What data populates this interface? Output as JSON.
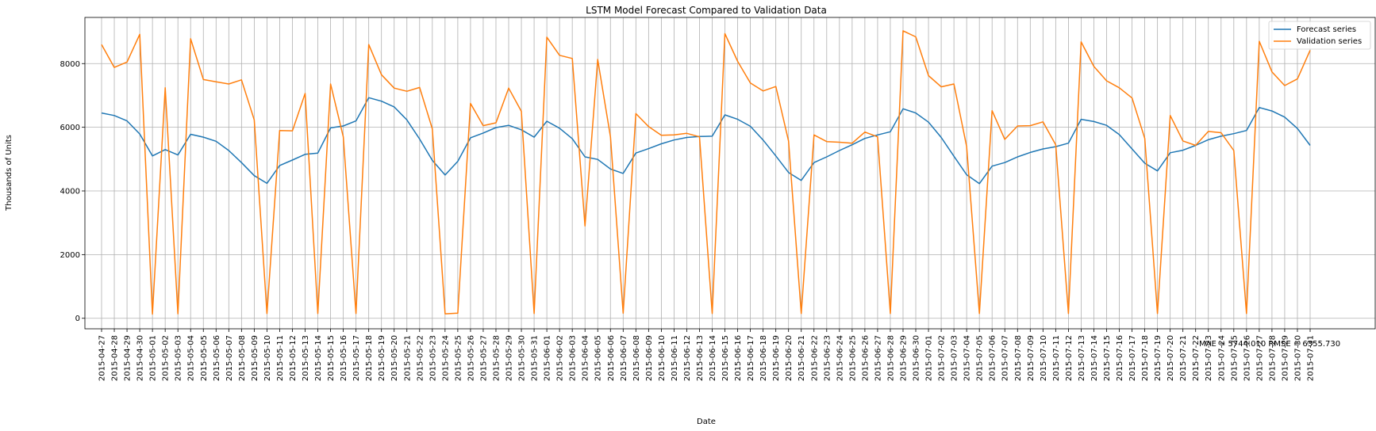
{
  "chart_data": {
    "type": "line",
    "title": "LSTM Model Forecast Compared to Validation Data",
    "xlabel": "Date",
    "ylabel": "Thousands of Units",
    "ylim": [
      -330,
      9450
    ],
    "yticks": [
      0,
      2000,
      4000,
      6000,
      8000
    ],
    "grid": true,
    "legend_position": "top-right",
    "annotation": "MAE = 5744.010  RMSE = 6355.730",
    "x": [
      "2015-04-27",
      "2015-04-28",
      "2015-04-29",
      "2015-04-30",
      "2015-05-01",
      "2015-05-02",
      "2015-05-03",
      "2015-05-04",
      "2015-05-05",
      "2015-05-06",
      "2015-05-07",
      "2015-05-08",
      "2015-05-09",
      "2015-05-10",
      "2015-05-11",
      "2015-05-12",
      "2015-05-13",
      "2015-05-14",
      "2015-05-15",
      "2015-05-16",
      "2015-05-17",
      "2015-05-18",
      "2015-05-19",
      "2015-05-20",
      "2015-05-21",
      "2015-05-22",
      "2015-05-23",
      "2015-05-24",
      "2015-05-25",
      "2015-05-26",
      "2015-05-27",
      "2015-05-28",
      "2015-05-29",
      "2015-05-30",
      "2015-05-31",
      "2015-06-01",
      "2015-06-02",
      "2015-06-03",
      "2015-06-04",
      "2015-06-05",
      "2015-06-06",
      "2015-06-07",
      "2015-06-08",
      "2015-06-09",
      "2015-06-10",
      "2015-06-11",
      "2015-06-12",
      "2015-06-13",
      "2015-06-14",
      "2015-06-15",
      "2015-06-16",
      "2015-06-17",
      "2015-06-18",
      "2015-06-19",
      "2015-06-20",
      "2015-06-21",
      "2015-06-22",
      "2015-06-23",
      "2015-06-24",
      "2015-06-25",
      "2015-06-26",
      "2015-06-27",
      "2015-06-28",
      "2015-06-29",
      "2015-06-30",
      "2015-07-01",
      "2015-07-02",
      "2015-07-03",
      "2015-07-04",
      "2015-07-05",
      "2015-07-06",
      "2015-07-07",
      "2015-07-08",
      "2015-07-09",
      "2015-07-10",
      "2015-07-11",
      "2015-07-12",
      "2015-07-13",
      "2015-07-14",
      "2015-07-15",
      "2015-07-16",
      "2015-07-17",
      "2015-07-18",
      "2015-07-19",
      "2015-07-20",
      "2015-07-21",
      "2015-07-22",
      "2015-07-23",
      "2015-07-24",
      "2015-07-25",
      "2015-07-26",
      "2015-07-27",
      "2015-07-28",
      "2015-07-29",
      "2015-07-30",
      "2015-07-31"
    ],
    "series": [
      {
        "name": "Forecast series",
        "color": "#1f77b4",
        "values": [
          6450,
          6370,
          6200,
          5790,
          5100,
          5300,
          5130,
          5780,
          5690,
          5560,
          5270,
          4890,
          4480,
          4240,
          4800,
          4970,
          5150,
          5190,
          5980,
          6040,
          6200,
          6930,
          6820,
          6640,
          6230,
          5630,
          4960,
          4500,
          4930,
          5670,
          5820,
          5990,
          6060,
          5920,
          5690,
          6190,
          5970,
          5640,
          5070,
          4990,
          4690,
          4550,
          5190,
          5330,
          5480,
          5600,
          5680,
          5710,
          5720,
          6390,
          6250,
          6030,
          5600,
          5100,
          4580,
          4330,
          4890,
          5070,
          5270,
          5450,
          5650,
          5760,
          5860,
          6580,
          6450,
          6160,
          5680,
          5090,
          4510,
          4230,
          4780,
          4890,
          5070,
          5210,
          5320,
          5390,
          5500,
          6250,
          6180,
          6060,
          5770,
          5320,
          4870,
          4630,
          5200,
          5280,
          5430,
          5610,
          5720,
          5800,
          5900,
          6620,
          6510,
          6320,
          5960,
          5430
        ]
      },
      {
        "name": "Validation series",
        "color": "#ff7f0e",
        "values": [
          8600,
          7880,
          8050,
          8920,
          130,
          7240,
          140,
          8780,
          7500,
          7430,
          7360,
          7490,
          6230,
          150,
          5900,
          5890,
          7060,
          150,
          7360,
          5700,
          150,
          8600,
          7650,
          7230,
          7130,
          7250,
          5950,
          140,
          160,
          6750,
          6050,
          6140,
          7230,
          6500,
          150,
          8830,
          8260,
          8160,
          2900,
          8130,
          5700,
          160,
          6430,
          6020,
          5750,
          5760,
          5810,
          5700,
          150,
          8940,
          8070,
          7390,
          7140,
          7280,
          5570,
          150,
          5760,
          5550,
          5530,
          5500,
          5850,
          5700,
          150,
          9030,
          8840,
          7620,
          7270,
          7360,
          5400,
          150,
          6520,
          5620,
          6040,
          6050,
          6170,
          5450,
          150,
          8680,
          7910,
          7460,
          7240,
          6920,
          5650,
          150,
          6370,
          5570,
          5430,
          5870,
          5830,
          5270,
          150,
          8700,
          7740,
          7310,
          7520,
          8420
        ]
      }
    ]
  }
}
